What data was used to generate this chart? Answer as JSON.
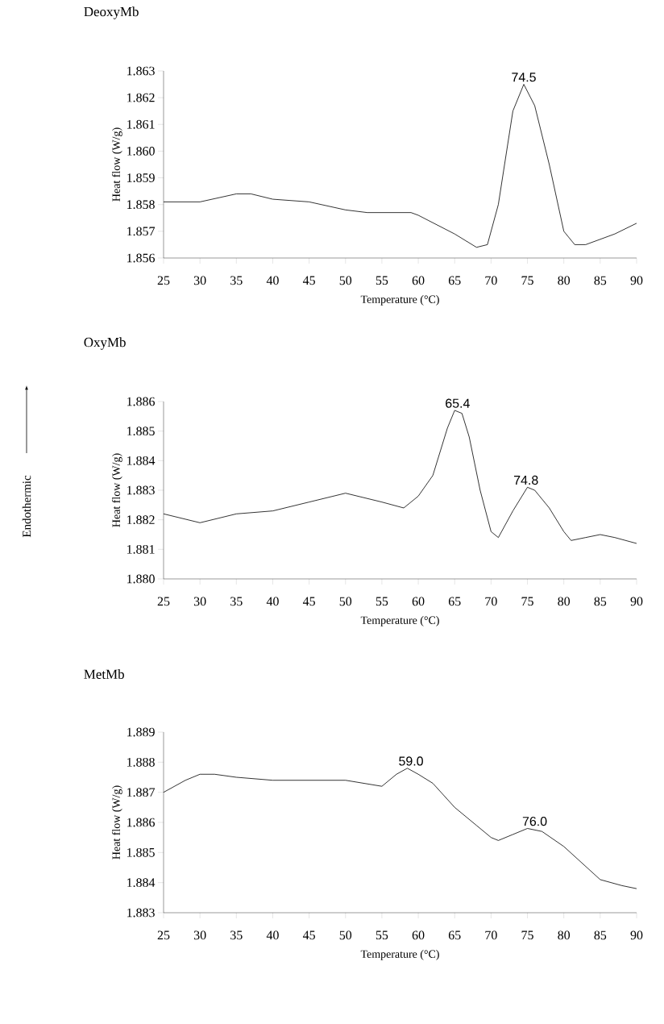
{
  "chart_data": [
    {
      "type": "line",
      "title": "DeoxyMb",
      "xlabel": "Temperature (°C)",
      "ylabel": "Heat flow (W/g)",
      "x": [
        25,
        30,
        35,
        37,
        40,
        45,
        50,
        53,
        59,
        60,
        65,
        68,
        69.5,
        71,
        73,
        74.5,
        76,
        78,
        80,
        81.5,
        83,
        87,
        90
      ],
      "series": [
        {
          "color": "#000000",
          "values": [
            1.8581,
            1.8581,
            1.8584,
            1.8584,
            1.8582,
            1.8581,
            1.8578,
            1.8577,
            1.8577,
            1.8576,
            1.8569,
            1.8564,
            1.8565,
            1.858,
            1.8615,
            1.8625,
            1.8617,
            1.8595,
            1.857,
            1.8565,
            1.8565,
            1.8569,
            1.8573
          ]
        }
      ],
      "xlim": [
        25,
        90
      ],
      "xticks": [
        25,
        30,
        35,
        40,
        45,
        50,
        55,
        60,
        65,
        70,
        75,
        80,
        85,
        90
      ],
      "ylim": [
        1.856,
        1.863
      ],
      "yticks": [
        1.856,
        1.857,
        1.858,
        1.859,
        {
          "value": 1.86,
          "label": "1.860"
        },
        1.861,
        1.862,
        1.863
      ],
      "annotations": [
        {
          "text": "74.5",
          "x": 74.5,
          "y": 1.8625
        }
      ]
    },
    {
      "type": "line",
      "title": "OxyMb",
      "xlabel": "Temperature (°C)",
      "ylabel": "Heat flow (W/g)",
      "x": [
        25,
        30,
        35,
        40,
        45,
        50,
        55,
        58,
        60,
        62,
        64,
        65,
        66,
        67,
        68.5,
        70,
        71,
        73,
        75,
        76,
        78,
        80,
        81,
        83,
        85,
        87,
        90
      ],
      "series": [
        {
          "color": "#000000",
          "values": [
            1.8822,
            1.8819,
            1.8822,
            1.8823,
            1.8826,
            1.8829,
            1.8826,
            1.8824,
            1.8828,
            1.8835,
            1.8851,
            1.8857,
            1.8856,
            1.8848,
            1.883,
            1.8816,
            1.8814,
            1.8823,
            1.8831,
            1.883,
            1.8824,
            1.8816,
            1.8813,
            1.8814,
            1.8815,
            1.8814,
            1.8812
          ]
        }
      ],
      "xlim": [
        25,
        90
      ],
      "xticks": [
        25,
        30,
        35,
        40,
        45,
        50,
        55,
        60,
        65,
        70,
        75,
        80,
        85,
        90
      ],
      "ylim": [
        1.88,
        1.886
      ],
      "yticks": [
        {
          "value": 1.88,
          "label": "1.880"
        },
        1.881,
        1.882,
        1.883,
        1.884,
        1.885,
        1.886
      ],
      "annotations": [
        {
          "text": "65.4",
          "x": 65.4,
          "y": 1.8857
        },
        {
          "text": "74.8",
          "x": 74.8,
          "y": 1.8831
        },
        "Endothermic"
      ]
    },
    {
      "type": "line",
      "title": "MetMb",
      "xlabel": "Temperature (°C)",
      "ylabel": "Heat flow (W/g)",
      "x": [
        25,
        28,
        30,
        32,
        35,
        40,
        45,
        50,
        55,
        57,
        58.5,
        60,
        62,
        65,
        68,
        70,
        71,
        73,
        75,
        77,
        80,
        85,
        88,
        90
      ],
      "series": [
        {
          "color": "#000000",
          "values": [
            1.887,
            1.8874,
            1.8876,
            1.8876,
            1.8875,
            1.8874,
            1.8874,
            1.8874,
            1.8872,
            1.8876,
            1.8878,
            1.8876,
            1.8873,
            1.8865,
            1.8859,
            1.8855,
            1.8854,
            1.8856,
            1.8858,
            1.8857,
            1.8852,
            1.8841,
            1.8839,
            1.8838
          ]
        }
      ],
      "xlim": [
        25,
        90
      ],
      "xticks": [
        25,
        30,
        35,
        40,
        45,
        50,
        55,
        60,
        65,
        70,
        75,
        80,
        85,
        90
      ],
      "ylim": [
        1.883,
        1.889
      ],
      "yticks": [
        1.883,
        1.884,
        1.885,
        1.886,
        1.887,
        1.888,
        1.889
      ],
      "annotations": [
        {
          "text": "59.0",
          "x": 59.0,
          "y": 1.8878
        },
        {
          "text": "76.0",
          "x": 76.0,
          "y": 1.8858
        }
      ]
    }
  ]
}
